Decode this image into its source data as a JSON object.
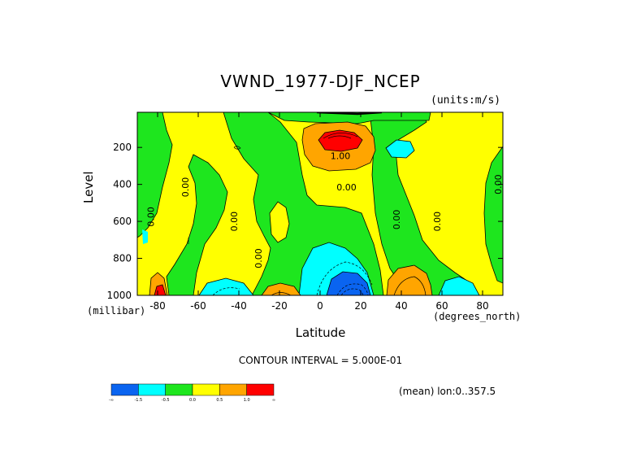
{
  "chart_data": {
    "type": "heatmap",
    "title": "VWND_1977-DJF_NCEP",
    "units_label": "(units:m/s)",
    "xlabel": "Latitude",
    "x_unit_label": "(degrees_north)",
    "ylabel": "Level",
    "y_unit_label": "(millibar)",
    "xlim": [
      -90,
      90
    ],
    "ylim": [
      1000,
      10
    ],
    "x_ticks": [
      -80,
      -60,
      -40,
      -20,
      0,
      20,
      40,
      60,
      80
    ],
    "y_ticks": [
      200,
      400,
      600,
      800,
      1000
    ],
    "contour_interval_text": "CONTOUR INTERVAL = 5.000E-01",
    "mean_text": "(mean) lon:0..357.5",
    "contour_labels": [
      "0.00",
      "0.00",
      "0.00",
      "0.00",
      "0.00",
      "0.00",
      "0.00",
      "0.00",
      "1.00"
    ],
    "colorbar": {
      "bins": [
        {
          "color": "#0a64f0",
          "label": "-∞"
        },
        {
          "color": "#00ffff",
          "label": "-1.5"
        },
        {
          "color": "#1ee61e",
          "label": "-0.5"
        },
        {
          "color": "#ffff00",
          "label": "0.0"
        },
        {
          "color": "#ffa500",
          "label": "0.5"
        },
        {
          "color": "#ff0000",
          "label": "1.0"
        }
      ],
      "end_label": "∞"
    }
  }
}
